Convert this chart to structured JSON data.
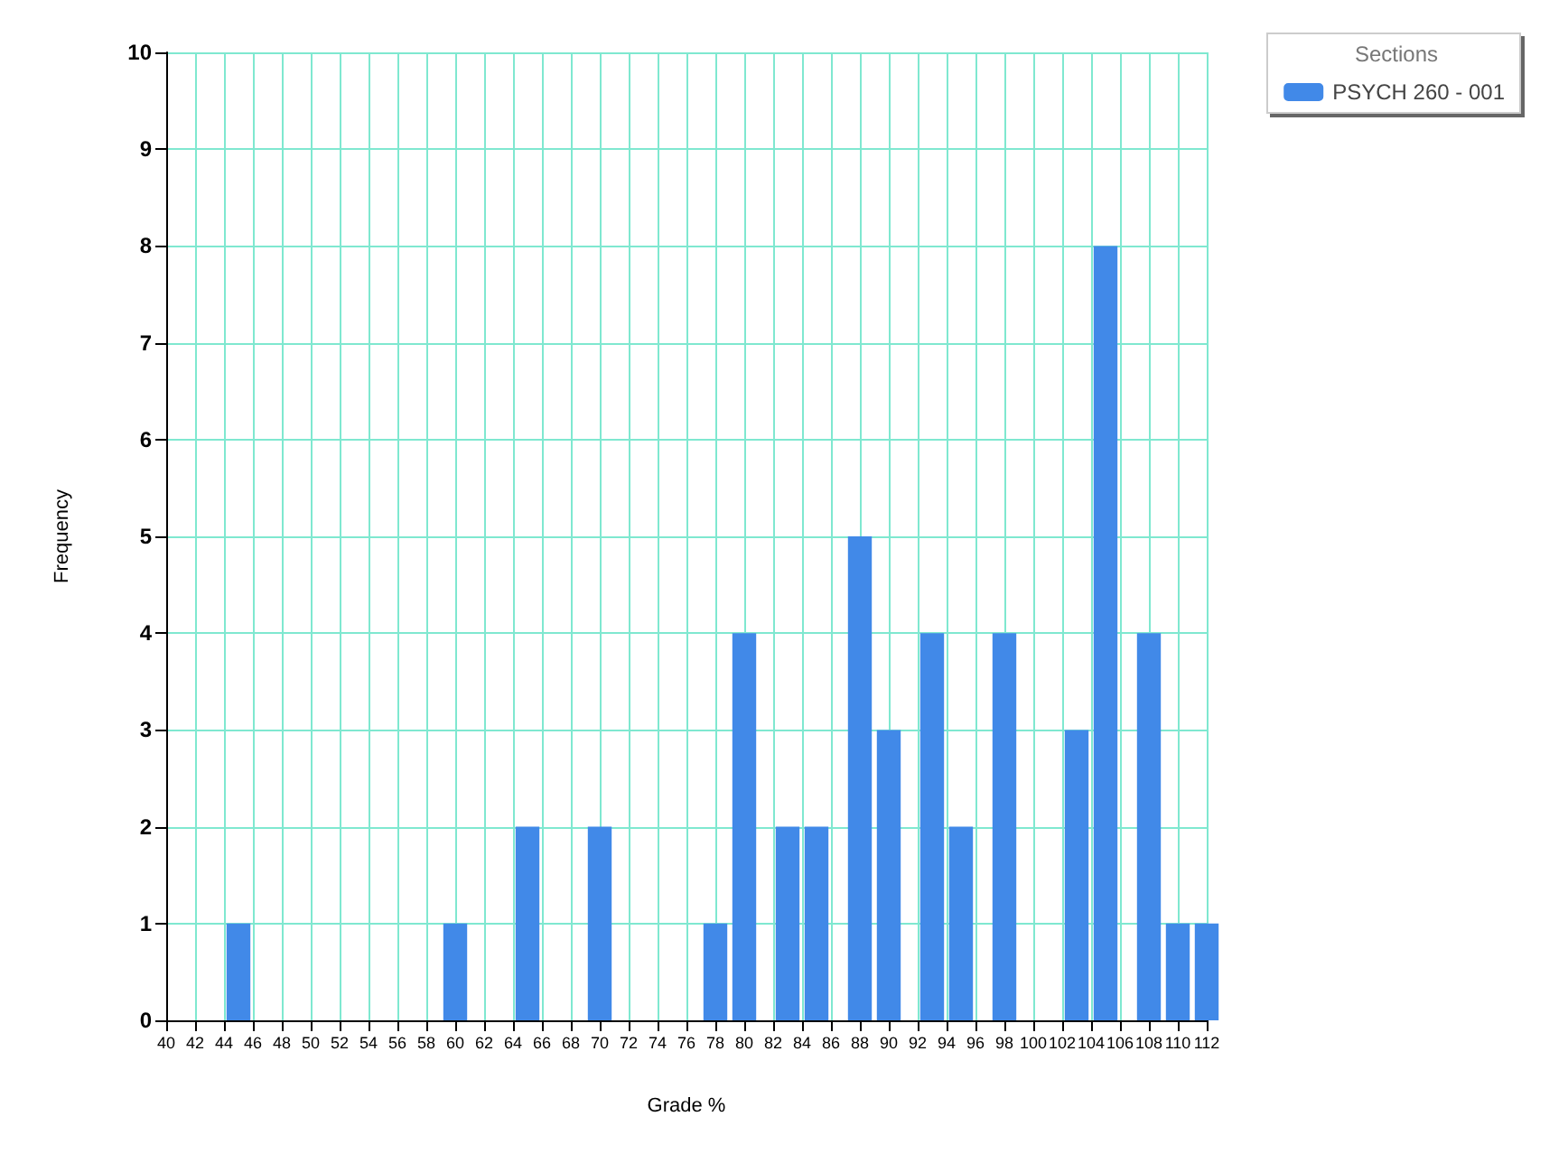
{
  "chart_data": {
    "type": "bar",
    "xlabel": "Grade %",
    "ylabel": "Frequency",
    "legend_title": "Sections",
    "x": [
      45,
      60,
      65,
      70,
      78,
      80,
      83,
      85,
      88,
      90,
      93,
      95,
      98,
      103,
      105,
      108,
      110,
      112
    ],
    "series": [
      {
        "name": "PSYCH 260 - 001",
        "color": "#4189e8",
        "values": [
          1,
          1,
          2,
          2,
          1,
          4,
          2,
          2,
          5,
          3,
          4,
          2,
          4,
          3,
          8,
          4,
          1,
          1
        ]
      }
    ],
    "xlim": [
      40,
      112
    ],
    "xticks": [
      40,
      42,
      44,
      46,
      48,
      50,
      52,
      54,
      56,
      58,
      60,
      62,
      64,
      66,
      68,
      70,
      72,
      74,
      76,
      78,
      80,
      82,
      84,
      86,
      88,
      90,
      92,
      94,
      96,
      98,
      100,
      102,
      104,
      106,
      108,
      110,
      112
    ],
    "ylim": [
      0,
      10
    ],
    "yticks": [
      0,
      1,
      2,
      3,
      4,
      5,
      6,
      7,
      8,
      9,
      10
    ],
    "grid": true,
    "legend": "top right"
  }
}
